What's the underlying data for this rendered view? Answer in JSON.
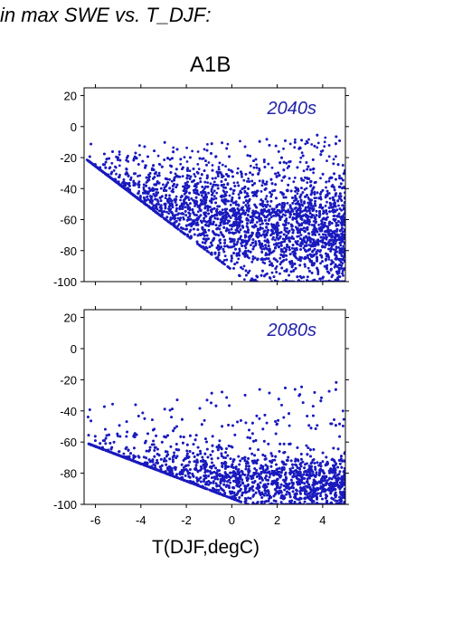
{
  "title_text": "in max SWE vs. T_DJF:",
  "scenario_label": "A1B",
  "colors": {
    "points": "#1a1abf",
    "period_label": "#2222aa",
    "axis": "#000000"
  },
  "chart_data": [
    {
      "type": "scatter",
      "annotation": "2040s",
      "xlim": [
        -6.5,
        5
      ],
      "ylim": [
        -100,
        25
      ],
      "xticks": [
        -6,
        -4,
        -2,
        0,
        2,
        4
      ],
      "yticks": [
        20,
        0,
        -20,
        -40,
        -60,
        -80,
        -100
      ],
      "show_x_tick_labels": false,
      "xlabel": "",
      "point_count": 6000,
      "trend": {
        "x0": -6.5,
        "y0_upper": -15,
        "x1": 5,
        "y1_upper": -5,
        "lower_left_y": -20,
        "lower_right_y": -100
      }
    },
    {
      "type": "scatter",
      "annotation": "2080s",
      "xlim": [
        -6.5,
        5
      ],
      "ylim": [
        -100,
        25
      ],
      "xticks": [
        -6,
        -4,
        -2,
        0,
        2,
        4
      ],
      "yticks": [
        20,
        0,
        -20,
        -40,
        -60,
        -80,
        -100
      ],
      "show_x_tick_labels": true,
      "xlabel": "T(DJF,degC)",
      "point_count": 5000,
      "trend": {
        "x0": -6.5,
        "y0_upper": -35,
        "x1": 5,
        "y1_upper": -20,
        "lower_left_y": -60,
        "lower_right_y": -100
      }
    }
  ]
}
